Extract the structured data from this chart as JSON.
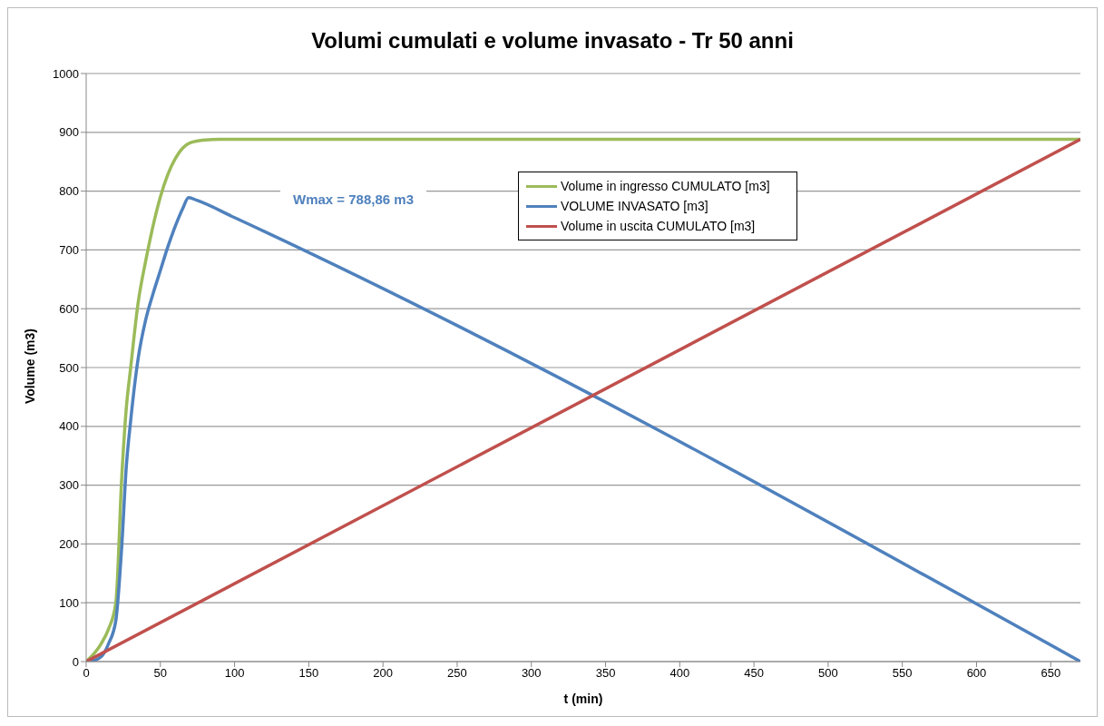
{
  "chart_data": {
    "type": "line",
    "title": "Volumi cumulati e volume invasato - Tr 50 anni",
    "xlabel": "t (min)",
    "ylabel": "Volume (m3)",
    "series": [
      {
        "name": "Volume in ingresso CUMULATO [m3]",
        "color": "#9bbb59",
        "x": [
          0,
          10,
          15,
          20,
          24,
          27,
          30,
          35,
          40,
          45,
          50,
          55,
          60,
          65,
          70,
          80,
          90,
          670
        ],
        "values": [
          0,
          30,
          55,
          100,
          315,
          430,
          500,
          610,
          680,
          740,
          790,
          828,
          855,
          873,
          882,
          887,
          888,
          888
        ]
      },
      {
        "name": "VOLUME INVASATO [m3]",
        "color": "#4f81bd",
        "x": [
          3,
          10,
          15,
          20,
          24,
          27,
          30,
          35,
          40,
          45,
          50,
          55,
          60,
          65,
          69,
          75,
          100,
          670
        ],
        "values": [
          0,
          8,
          30,
          70,
          197,
          330,
          410,
          515,
          580,
          625,
          665,
          705,
          740,
          770,
          789,
          784,
          755,
          0
        ]
      },
      {
        "name": "Volume in uscita CUMULATO [m3]",
        "color": "#c0504d",
        "x": [
          0,
          670
        ],
        "values": [
          0,
          888
        ]
      }
    ],
    "xlim": [
      0,
      670
    ],
    "xticks": [
      0,
      50,
      100,
      150,
      200,
      250,
      300,
      350,
      400,
      450,
      500,
      550,
      600,
      650
    ],
    "ylim": [
      0,
      1000
    ],
    "yticks": [
      0,
      100,
      200,
      300,
      400,
      500,
      600,
      700,
      800,
      900,
      1000
    ],
    "grid": "y",
    "legend": "top right",
    "marker": "none",
    "line_style": "solid",
    "annotations": [
      "Wmax = 788,86 m3"
    ]
  }
}
